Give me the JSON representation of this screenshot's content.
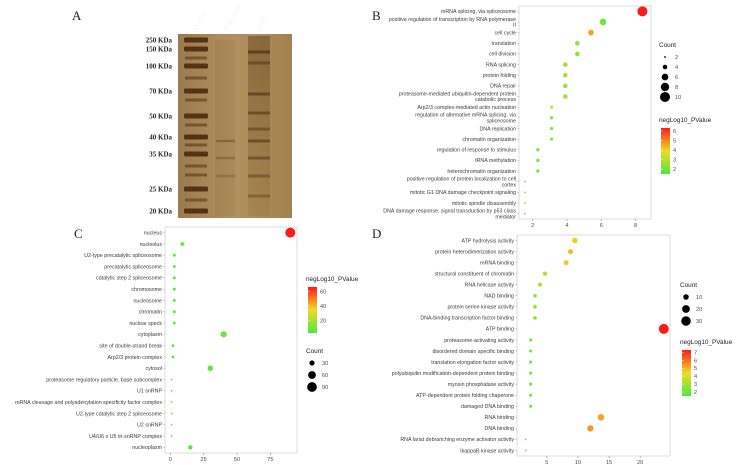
{
  "panels": {
    "a": "A",
    "b": "B",
    "c": "C",
    "d": "D"
  },
  "gel": {
    "lanes": [
      "Marker",
      "Antisense",
      "Sense"
    ],
    "markers": [
      "250 KDa",
      "150 KDa",
      "100 KDa",
      "70 KDa",
      "50 KDa",
      "40 KDa",
      "35 KDa",
      "25 KDa",
      "20 KDa"
    ]
  },
  "colors": {
    "low": "#4de83c",
    "mid": "#f0dc23",
    "high": "#ff1a1a"
  },
  "chart_data": [
    {
      "id": "B",
      "type": "scatter",
      "xticks": [
        2,
        4,
        6,
        8
      ],
      "xlim": [
        1.2,
        8.9
      ],
      "color_legend": {
        "title": "negLog10_PValue",
        "ticks": [
          2,
          3,
          4,
          5,
          6
        ],
        "range": [
          1.5,
          6.3
        ]
      },
      "size_legend": {
        "title": "Count",
        "ticks": [
          2,
          4,
          6,
          8,
          10
        ]
      },
      "points": [
        {
          "term": "mRNA splicing, via spliceosome",
          "x": 8.4,
          "color": 6.3,
          "size": 10
        },
        {
          "term": "positive regulation of transcription by RNA polymerase II",
          "x": 6.1,
          "color": 2.0,
          "size": 6
        },
        {
          "term": "cell cycle",
          "x": 5.4,
          "color": 4.6,
          "size": 5
        },
        {
          "term": "translation",
          "x": 4.6,
          "color": 2.4,
          "size": 4
        },
        {
          "term": "cell division",
          "x": 4.6,
          "color": 2.4,
          "size": 4
        },
        {
          "term": "RNA splicing",
          "x": 3.9,
          "color": 2.8,
          "size": 4
        },
        {
          "term": "protein folding",
          "x": 3.9,
          "color": 2.8,
          "size": 4
        },
        {
          "term": "DNA repair",
          "x": 3.9,
          "color": 2.8,
          "size": 4
        },
        {
          "term": "proteasome-mediated ubiquitin-dependent protein catabolic process",
          "x": 3.9,
          "color": 2.8,
          "size": 4
        },
        {
          "term": "Arp2/3 complex-mediated actin nucleation",
          "x": 3.1,
          "color": 3.5,
          "size": 3
        },
        {
          "term": "regulation of alternative mRNA splicing, via spliceosome",
          "x": 3.1,
          "color": 2.5,
          "size": 3
        },
        {
          "term": "DNA replication",
          "x": 3.1,
          "color": 2.5,
          "size": 3
        },
        {
          "term": "chromatin organization",
          "x": 3.1,
          "color": 2.5,
          "size": 3
        },
        {
          "term": "regulation of response to stimulus",
          "x": 2.3,
          "color": 2.2,
          "size": 3
        },
        {
          "term": "tRNA methylation",
          "x": 2.3,
          "color": 2.2,
          "size": 3
        },
        {
          "term": "heterochromatin organization",
          "x": 2.3,
          "color": 2.2,
          "size": 3
        },
        {
          "term": "positive regulation of protein localization to cell cortex",
          "x": 1.55,
          "color": 1.9,
          "size": 2
        },
        {
          "term": "mitotic G1 DNA damage checkpoint signaling",
          "x": 1.55,
          "color": 1.9,
          "size": 2
        },
        {
          "term": "mitotic spindle disassembly",
          "x": 1.55,
          "color": 1.9,
          "size": 2
        },
        {
          "term": "DNA damage response, signal transduction by p53 class mediator",
          "x": 1.55,
          "color": 1.9,
          "size": 2
        }
      ]
    },
    {
      "id": "C",
      "type": "scatter",
      "xticks": [
        0,
        25,
        50,
        75
      ],
      "xlim": [
        -4,
        95
      ],
      "color_legend": {
        "title": "negLog10_PValue",
        "ticks": [
          20,
          40,
          60
        ],
        "range": [
          3,
          66
        ]
      },
      "size_legend": {
        "title": "Count",
        "ticks": [
          30,
          60,
          90
        ]
      },
      "points": [
        {
          "term": "nucleus",
          "x": 90,
          "color": 66,
          "size": 95
        },
        {
          "term": "nucleolus",
          "x": 9,
          "color": 8,
          "size": 18
        },
        {
          "term": "U2-type precatalytic spliceosome",
          "x": 3,
          "color": 6,
          "size": 12
        },
        {
          "term": "precatalytic spliceosome",
          "x": 3,
          "color": 6,
          "size": 12
        },
        {
          "term": "catalytic step 2 spliceosome",
          "x": 3,
          "color": 6,
          "size": 12
        },
        {
          "term": "chromosome",
          "x": 3,
          "color": 6,
          "size": 12
        },
        {
          "term": "nucleosome",
          "x": 3,
          "color": 6,
          "size": 12
        },
        {
          "term": "chromatin",
          "x": 3,
          "color": 6,
          "size": 12
        },
        {
          "term": "nuclear speck",
          "x": 3,
          "color": 6,
          "size": 12
        },
        {
          "term": "cytoplasm",
          "x": 40,
          "color": 8,
          "size": 40
        },
        {
          "term": "site of double-strand break",
          "x": 2,
          "color": 5,
          "size": 11
        },
        {
          "term": "Arp2/3 protein complex",
          "x": 2,
          "color": 5,
          "size": 11
        },
        {
          "term": "cytosol",
          "x": 30,
          "color": 6,
          "size": 33
        },
        {
          "term": "proteasome regulatory particle, base subcomplex",
          "x": 1,
          "color": 4,
          "size": 6
        },
        {
          "term": "U1 snRNP",
          "x": 1,
          "color": 4,
          "size": 6
        },
        {
          "term": "mRNA cleavage and polyadenylation specificity factor complex",
          "x": 1,
          "color": 4,
          "size": 6
        },
        {
          "term": "U2-type catalytic step 2 spliceosome",
          "x": 1,
          "color": 4,
          "size": 6
        },
        {
          "term": "U2 snRNP",
          "x": 1,
          "color": 4,
          "size": 6
        },
        {
          "term": "U4/U6 x U5 tri-snRNP complex",
          "x": 1,
          "color": 4,
          "size": 6
        },
        {
          "term": "nucleoplasm",
          "x": 15,
          "color": 5,
          "size": 22
        }
      ]
    },
    {
      "id": "D",
      "type": "scatter",
      "xticks": [
        5,
        10,
        15,
        20
      ],
      "xlim": [
        0.2,
        24.8
      ],
      "color_legend": {
        "title": "negLog10_PValue",
        "ticks": [
          2,
          3,
          4,
          5,
          6,
          7
        ],
        "range": [
          1.5,
          7.3
        ]
      },
      "size_legend": {
        "title": "Count",
        "ticks": [
          10,
          20,
          30
        ]
      },
      "points": [
        {
          "term": "ATP hydrolysis activity",
          "x": 9.5,
          "color": 4.6,
          "size": 10
        },
        {
          "term": "protein heterodimerization activity",
          "x": 8.8,
          "color": 4.8,
          "size": 9
        },
        {
          "term": "mRNA binding",
          "x": 8.1,
          "color": 4.7,
          "size": 8
        },
        {
          "term": "structural constituent of chromatin",
          "x": 4.7,
          "color": 3.4,
          "size": 6
        },
        {
          "term": "RNA helicase activity",
          "x": 3.9,
          "color": 3.0,
          "size": 5
        },
        {
          "term": "NAD binding",
          "x": 3.1,
          "color": 2.5,
          "size": 4
        },
        {
          "term": "protein serine kinase activity",
          "x": 3.1,
          "color": 2.5,
          "size": 4
        },
        {
          "term": "DNA-binding transcription factor binding",
          "x": 3.1,
          "color": 2.5,
          "size": 4
        },
        {
          "term": "ATP binding",
          "x": 23.8,
          "color": 7.3,
          "size": 33
        },
        {
          "term": "proteasome-activating activity",
          "x": 2.4,
          "color": 2.1,
          "size": 3
        },
        {
          "term": "disordered domain specific binding",
          "x": 2.4,
          "color": 2.1,
          "size": 3
        },
        {
          "term": "translation elongation factor activity",
          "x": 2.4,
          "color": 2.1,
          "size": 3
        },
        {
          "term": "polyubiquitin modification-dependent protein binding",
          "x": 2.4,
          "color": 2.1,
          "size": 3
        },
        {
          "term": "myosin phosphatase activity",
          "x": 2.4,
          "color": 2.1,
          "size": 3
        },
        {
          "term": "ATP-dependent protein folding chaperone",
          "x": 2.4,
          "color": 2.1,
          "size": 3
        },
        {
          "term": "damaged DNA binding",
          "x": 2.4,
          "color": 2.1,
          "size": 3
        },
        {
          "term": "RNA binding",
          "x": 13.7,
          "color": 5.2,
          "size": 14
        },
        {
          "term": "DNA binding",
          "x": 12.0,
          "color": 5.4,
          "size": 13
        },
        {
          "term": "RNA lariat debranching enzyme activator activity",
          "x": 1.6,
          "color": 1.7,
          "size": 1
        },
        {
          "term": "IkappaB kinase activity",
          "x": 1.6,
          "color": 1.7,
          "size": 1
        }
      ]
    }
  ]
}
